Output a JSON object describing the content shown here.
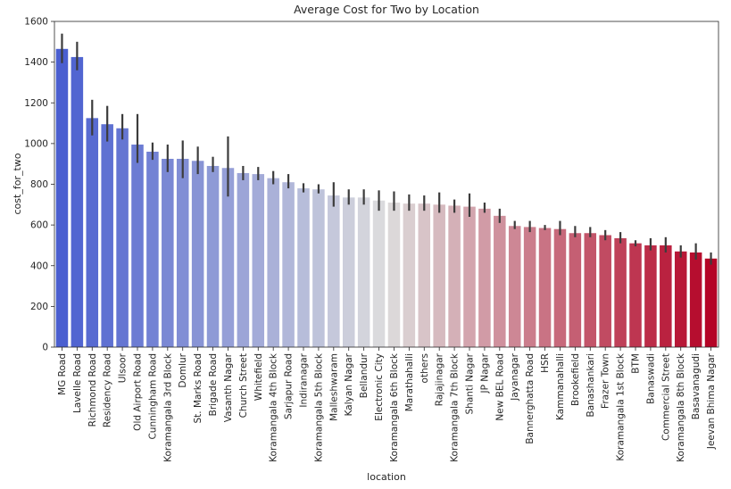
{
  "chart_data": {
    "type": "bar",
    "title": "Average Cost for Two by Location",
    "xlabel": "location",
    "ylabel": "cost_for_two",
    "ylim": [
      0,
      1600
    ],
    "yticks": [
      0,
      200,
      400,
      600,
      800,
      1000,
      1200,
      1400,
      1600
    ],
    "grid": false,
    "legend": "none",
    "palette": "coolwarm",
    "palette_start": "#4a5fd0",
    "palette_mid": "#dddddd",
    "palette_end": "#b40426",
    "categories": [
      "MG Road",
      "Lavelle Road",
      "Richmond Road",
      "Residency Road",
      "Ulsoor",
      "Old Airport Road",
      "Cunningham Road",
      "Koramangala 3rd Block",
      "Domlur",
      "St. Marks Road",
      "Brigade Road",
      "Vasanth Nagar",
      "Church Street",
      "Whitefield",
      "Koramangala 4th Block",
      "Sarjapur Road",
      "Indiranagar",
      "Koramangala 5th Block",
      "Malleshwaram",
      "Kalyan Nagar",
      "Bellandur",
      "Electronic City",
      "Koramangala 6th Block",
      "Marathahalli",
      "others",
      "Rajajinagar",
      "Koramangala 7th Block",
      "Shanti Nagar",
      "JP Nagar",
      "New BEL Road",
      "Jayanagar",
      "Bannerghatta Road",
      "HSR",
      "Kammanahalli",
      "Brookefield",
      "Banashankari",
      "Frazer Town",
      "Koramangala 1st Block",
      "BTM",
      "Banaswadi",
      "Commercial Street",
      "Koramangala 8th Block",
      "Basavanagudi",
      "Jeevan Bhima Nagar"
    ],
    "values": [
      1465,
      1425,
      1125,
      1095,
      1075,
      995,
      960,
      925,
      925,
      915,
      890,
      880,
      855,
      850,
      830,
      810,
      780,
      775,
      745,
      735,
      735,
      720,
      710,
      705,
      705,
      700,
      695,
      690,
      680,
      645,
      595,
      590,
      585,
      580,
      560,
      560,
      550,
      535,
      510,
      500,
      500,
      470,
      465,
      435
    ],
    "error_low": [
      1395,
      1360,
      1040,
      1010,
      1020,
      905,
      920,
      860,
      830,
      850,
      860,
      740,
      820,
      820,
      800,
      780,
      760,
      755,
      690,
      700,
      700,
      670,
      670,
      670,
      670,
      660,
      660,
      640,
      660,
      610,
      580,
      565,
      575,
      550,
      540,
      540,
      525,
      510,
      495,
      475,
      465,
      440,
      430,
      405
    ],
    "error_high": [
      1540,
      1500,
      1215,
      1185,
      1145,
      1145,
      1005,
      995,
      1015,
      985,
      935,
      1035,
      890,
      885,
      865,
      850,
      805,
      800,
      810,
      775,
      775,
      770,
      765,
      750,
      745,
      760,
      725,
      755,
      710,
      680,
      620,
      620,
      600,
      620,
      595,
      590,
      575,
      565,
      525,
      535,
      540,
      500,
      510,
      465
    ]
  }
}
